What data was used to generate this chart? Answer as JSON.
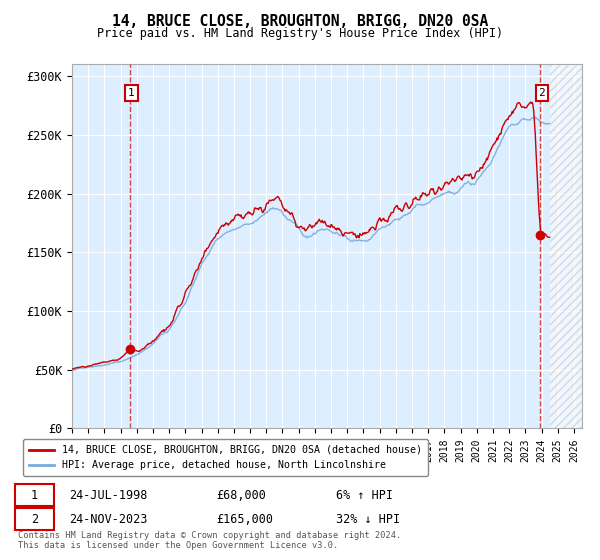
{
  "title": "14, BRUCE CLOSE, BROUGHTON, BRIGG, DN20 0SA",
  "subtitle": "Price paid vs. HM Land Registry's House Price Index (HPI)",
  "ylabel_ticks": [
    "£0",
    "£50K",
    "£100K",
    "£150K",
    "£200K",
    "£250K",
    "£300K"
  ],
  "ylim": [
    0,
    310000
  ],
  "xlim_start": 1995.0,
  "xlim_end": 2026.5,
  "sale1_date": 1998.56,
  "sale1_price": 68000,
  "sale1_label": "1",
  "sale1_info": "24-JUL-1998",
  "sale1_amount": "£68,000",
  "sale1_hpi": "6% ↑ HPI",
  "sale2_date": 2023.9,
  "sale2_price": 165000,
  "sale2_label": "2",
  "sale2_info": "24-NOV-2023",
  "sale2_amount": "£165,000",
  "sale2_hpi": "32% ↓ HPI",
  "red_line_color": "#cc0000",
  "blue_line_color": "#7aaadd",
  "bg_color": "#ddeeff",
  "hatch_start": 2024.5,
  "legend_line1": "14, BRUCE CLOSE, BROUGHTON, BRIGG, DN20 0SA (detached house)",
  "legend_line2": "HPI: Average price, detached house, North Lincolnshire",
  "footer": "Contains HM Land Registry data © Crown copyright and database right 2024.\nThis data is licensed under the Open Government Licence v3.0."
}
